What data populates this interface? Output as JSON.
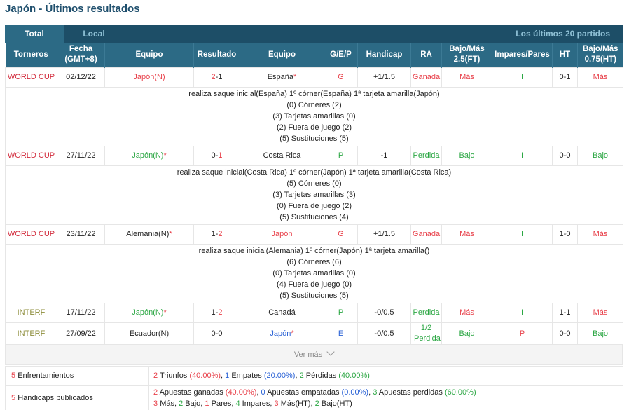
{
  "title": "Japón - Últimos resultados",
  "tabs": {
    "total": "Total",
    "local": "Local",
    "right": "Los últimos 20 partidos"
  },
  "headers": [
    "Torneros",
    "Fecha (GMT+8)",
    "Equipo",
    "Resultado",
    "Equipo",
    "G/E/P",
    "Handicap",
    "RA",
    "Bajo/Más 2.5(FT)",
    "Impares/Pares",
    "HT",
    "Bajo/Más 0.75(HT)"
  ],
  "matches": [
    {
      "tourney": "WORLD CUP",
      "date": "02/12/22",
      "home": "Japón(N)",
      "home_star": "",
      "score_h": "2",
      "score_sep": "-",
      "score_a": "1",
      "away": "España",
      "away_star": "*",
      "gep": "G",
      "handicap": "+1/1.5",
      "ra": "Ganada",
      "ou": "Más",
      "oe": "I",
      "ht": "0-1",
      "ouht": "Más",
      "details": [
        "realiza saque inicial(España)  1º córner(España)  1ª tarjeta amarilla(Japón)",
        "(0) Córneres (2)",
        "(3) Tarjetas amarillas (0)",
        "(2) Fuera de juego (2)",
        "(5) Sustituciones (5)"
      ]
    },
    {
      "tourney": "WORLD CUP",
      "date": "27/11/22",
      "home": "Japón(N)",
      "home_star": "*",
      "score_h": "0",
      "score_sep": "-",
      "score_a": "1",
      "away": "Costa Rica",
      "away_star": "",
      "gep": "P",
      "handicap": "-1",
      "ra": "Perdida",
      "ou": "Bajo",
      "oe": "I",
      "ht": "0-0",
      "ouht": "Bajo",
      "details": [
        "realiza saque inicial(Costa Rica)  1º córner(Japón)  1ª tarjeta amarilla(Costa Rica)",
        "(5) Córneres (0)",
        "(3) Tarjetas amarillas (3)",
        "(0) Fuera de juego (2)",
        "(5) Sustituciones (4)"
      ]
    },
    {
      "tourney": "WORLD CUP",
      "date": "23/11/22",
      "home": "Alemania(N)",
      "home_star": "*",
      "score_h": "1",
      "score_sep": "-",
      "score_a": "2",
      "away": "Japón",
      "away_star": "",
      "gep": "G",
      "handicap": "+1/1.5",
      "ra": "Ganada",
      "ou": "Más",
      "oe": "I",
      "ht": "1-0",
      "ouht": "Más",
      "details": [
        "realiza saque inicial(Alemania)  1º córner(Japón)  1ª tarjeta amarilla()",
        "(6) Córneres (6)",
        "(0) Tarjetas amarillas (0)",
        "(4) Fuera de juego (0)",
        "(5) Sustituciones (5)"
      ]
    },
    {
      "tourney": "INTERF",
      "date": "17/11/22",
      "home": "Japón(N)",
      "home_star": "*",
      "score_h": "1",
      "score_sep": "-",
      "score_a": "2",
      "away": "Canadá",
      "away_star": "",
      "gep": "P",
      "handicap": "-0/0.5",
      "ra": "Perdida",
      "ou": "Más",
      "oe": "I",
      "ht": "1-1",
      "ouht": "Más",
      "details": []
    },
    {
      "tourney": "INTERF",
      "date": "27/09/22",
      "home": "Ecuador(N)",
      "home_star": "",
      "score_h": "0",
      "score_sep": "-",
      "score_a": "0",
      "away": "Japón",
      "away_star": "*",
      "gep": "E",
      "handicap": "-0/0.5",
      "ra": "1/2 Perdida",
      "ou": "Bajo",
      "oe": "P",
      "ht": "0-0",
      "ouht": "Bajo",
      "details": []
    }
  ],
  "more": "Ver más",
  "summary": {
    "row1": {
      "count": "5",
      "label": "Enfrentamientos",
      "a": "2",
      "a_t": "Triunfos",
      "a_p": "(40.00%)",
      "b": "1",
      "b_t": "Empates",
      "b_p": "(20.00%)",
      "c": "2",
      "c_t": "Pérdidas",
      "c_p": "(40.00%)"
    },
    "row2": {
      "count": "5",
      "label": "Handicaps publicados",
      "a": "2",
      "a_t": "Apuestas ganadas",
      "a_p": "(40.00%)",
      "b": "0",
      "b_t": "Apuestas empatadas",
      "b_p": "(0.00%)",
      "c": "3",
      "c_t": "Apuestas perdidas",
      "c_p": "(60.00%)",
      "d1": "3",
      "d1_t": "Más,",
      "d2": "2",
      "d2_t": "Bajo,",
      "d3": "1",
      "d3_t": "Pares,",
      "d4": "4",
      "d4_t": "Impares,",
      "d5": "3",
      "d5_t": "Más(HT),",
      "d6": "2",
      "d6_t": "Bajo(HT)"
    }
  },
  "colors": {
    "header": "#2c6a85",
    "tabbar": "#1d4e67",
    "red": "#e8404a",
    "green": "#2aa642",
    "blue": "#2a62d6"
  }
}
